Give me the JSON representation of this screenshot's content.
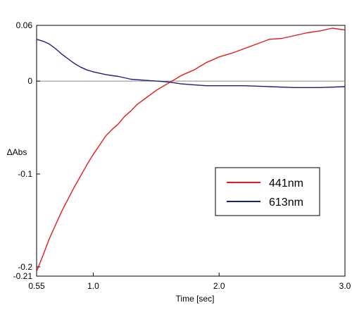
{
  "chart_data": {
    "type": "line",
    "title": "",
    "xlabel": "Time [sec]",
    "ylabel": "ΔAbs",
    "xlim": [
      0.55,
      3.0
    ],
    "ylim": [
      -0.21,
      0.06
    ],
    "grid": false,
    "legend_position": "right",
    "x_ticks": [
      {
        "value": 0.55,
        "label": "0.55"
      },
      {
        "value": 1.0,
        "label": "1.0"
      },
      {
        "value": 2.0,
        "label": "2.0"
      },
      {
        "value": 3.0,
        "label": "3.0"
      }
    ],
    "y_ticks": [
      {
        "value": 0.06,
        "label": "0.06"
      },
      {
        "value": 0.0,
        "label": "0"
      },
      {
        "value": -0.1,
        "label": "-0.1"
      },
      {
        "value": -0.2,
        "label": "-0.2"
      },
      {
        "value": -0.21,
        "label": "-0.21"
      }
    ],
    "zero_line": true,
    "series": [
      {
        "name": "441nm",
        "color": "#e31b1b",
        "x": [
          0.55,
          0.6,
          0.65,
          0.7,
          0.75,
          0.8,
          0.85,
          0.9,
          0.95,
          1.0,
          1.05,
          1.1,
          1.15,
          1.2,
          1.25,
          1.3,
          1.35,
          1.4,
          1.45,
          1.5,
          1.55,
          1.6,
          1.65,
          1.7,
          1.75,
          1.8,
          1.85,
          1.9,
          1.95,
          2.0,
          2.1,
          2.2,
          2.3,
          2.4,
          2.5,
          2.6,
          2.7,
          2.8,
          2.9,
          3.0
        ],
        "y": [
          -0.205,
          -0.188,
          -0.17,
          -0.155,
          -0.14,
          -0.127,
          -0.114,
          -0.102,
          -0.09,
          -0.079,
          -0.069,
          -0.059,
          -0.052,
          -0.046,
          -0.038,
          -0.032,
          -0.025,
          -0.02,
          -0.015,
          -0.01,
          -0.006,
          -0.002,
          0.002,
          0.006,
          0.009,
          0.012,
          0.016,
          0.02,
          0.023,
          0.026,
          0.03,
          0.035,
          0.04,
          0.045,
          0.046,
          0.049,
          0.052,
          0.054,
          0.057,
          0.055
        ]
      },
      {
        "name": "613nm",
        "color": "#1b1f7a",
        "x": [
          0.55,
          0.6,
          0.65,
          0.7,
          0.75,
          0.8,
          0.85,
          0.9,
          0.95,
          1.0,
          1.1,
          1.2,
          1.3,
          1.4,
          1.5,
          1.6,
          1.7,
          1.8,
          1.9,
          2.0,
          2.2,
          2.4,
          2.6,
          2.8,
          3.0
        ],
        "y": [
          0.045,
          0.043,
          0.04,
          0.035,
          0.029,
          0.024,
          0.019,
          0.015,
          0.012,
          0.01,
          0.007,
          0.005,
          0.002,
          0.001,
          0.0,
          -0.001,
          -0.003,
          -0.004,
          -0.005,
          -0.005,
          -0.005,
          -0.006,
          -0.007,
          -0.007,
          -0.006
        ]
      }
    ]
  }
}
